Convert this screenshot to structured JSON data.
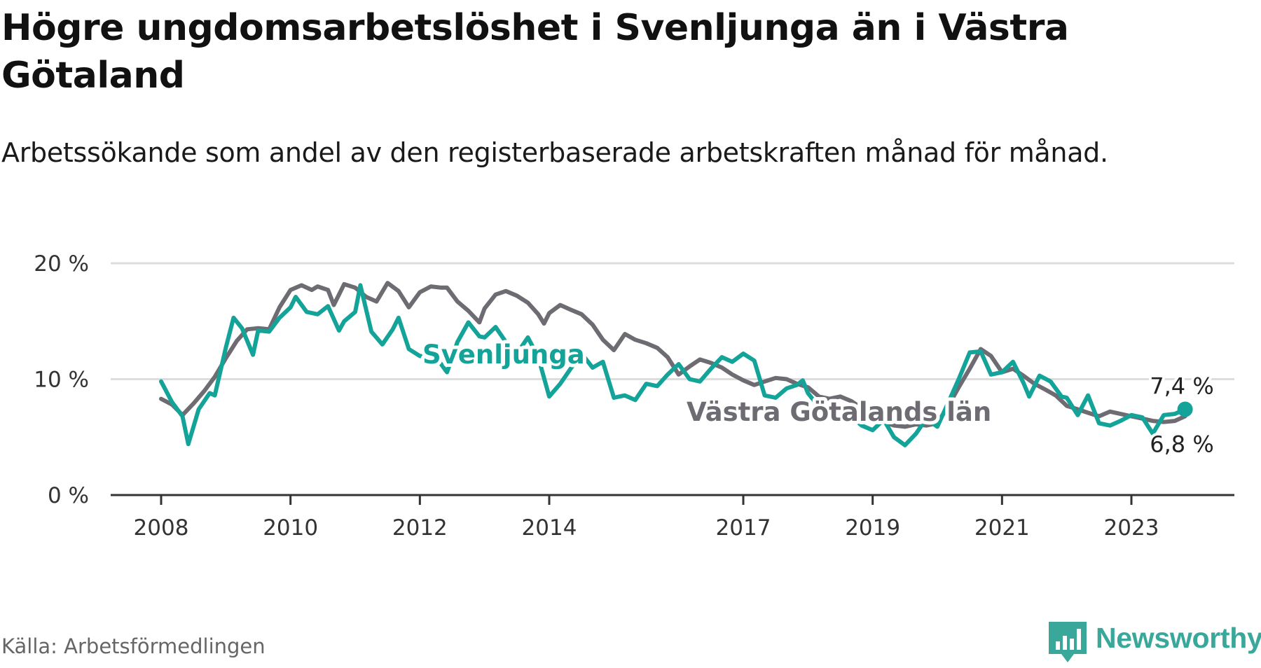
{
  "title": "Högre ungdomsarbetslöshet i Svenljunga än i Västra Götaland",
  "subtitle": "Arbetssökande som andel av den registerbaserade arbetskraften månad för månad.",
  "source": "Källa: Arbetsförmedlingen",
  "brand": "Newsworthy",
  "colors": {
    "svenljunga": "#14a398",
    "region": "#6e6c72",
    "grid": "#dddddd",
    "axis": "#333333",
    "brand": "#3aa79b"
  },
  "chart_data": {
    "type": "line",
    "title": "Högre ungdomsarbetslöshet i Svenljunga än i Västra Götaland",
    "xlabel": "",
    "ylabel": "",
    "xlim": [
      2007.8,
      2024.1
    ],
    "ylim": [
      0,
      20
    ],
    "x_ticks": [
      {
        "value": 2008.0,
        "label": "2008"
      },
      {
        "value": 2010.0,
        "label": "2010"
      },
      {
        "value": 2012.0,
        "label": "2012"
      },
      {
        "value": 2014.0,
        "label": "2014"
      },
      {
        "value": 2017.0,
        "label": "2017"
      },
      {
        "value": 2019.0,
        "label": "2019"
      },
      {
        "value": 2021.0,
        "label": "2021"
      },
      {
        "value": 2023.0,
        "label": "2023"
      }
    ],
    "y_ticks": [
      {
        "value": 0,
        "label": "0 %"
      },
      {
        "value": 10,
        "label": "10 %"
      },
      {
        "value": 20,
        "label": "20 %"
      }
    ],
    "series": [
      {
        "name": "Västra Götalands län",
        "label": "Västra Götalands län",
        "end_label": "6,8 %",
        "points": [
          [
            2008.0,
            8.3
          ],
          [
            2008.17,
            7.8
          ],
          [
            2008.33,
            6.9
          ],
          [
            2008.5,
            7.9
          ],
          [
            2008.67,
            9.0
          ],
          [
            2008.83,
            10.2
          ],
          [
            2009.0,
            11.8
          ],
          [
            2009.17,
            13.3
          ],
          [
            2009.33,
            14.3
          ],
          [
            2009.5,
            14.4
          ],
          [
            2009.67,
            14.3
          ],
          [
            2009.83,
            16.2
          ],
          [
            2010.0,
            17.7
          ],
          [
            2010.17,
            18.1
          ],
          [
            2010.33,
            17.7
          ],
          [
            2010.42,
            18.0
          ],
          [
            2010.58,
            17.7
          ],
          [
            2010.67,
            16.4
          ],
          [
            2010.83,
            18.2
          ],
          [
            2011.0,
            17.9
          ],
          [
            2011.17,
            17.1
          ],
          [
            2011.33,
            16.7
          ],
          [
            2011.5,
            18.3
          ],
          [
            2011.67,
            17.6
          ],
          [
            2011.83,
            16.2
          ],
          [
            2012.0,
            17.5
          ],
          [
            2012.17,
            18.0
          ],
          [
            2012.33,
            17.9
          ],
          [
            2012.42,
            17.9
          ],
          [
            2012.58,
            16.7
          ],
          [
            2012.75,
            15.9
          ],
          [
            2012.92,
            14.9
          ],
          [
            2013.0,
            16.1
          ],
          [
            2013.17,
            17.3
          ],
          [
            2013.33,
            17.6
          ],
          [
            2013.5,
            17.2
          ],
          [
            2013.67,
            16.6
          ],
          [
            2013.83,
            15.6
          ],
          [
            2013.92,
            14.8
          ],
          [
            2014.0,
            15.7
          ],
          [
            2014.17,
            16.4
          ],
          [
            2014.33,
            16.0
          ],
          [
            2014.5,
            15.6
          ],
          [
            2014.67,
            14.7
          ],
          [
            2014.83,
            13.4
          ],
          [
            2015.0,
            12.5
          ],
          [
            2015.17,
            13.9
          ],
          [
            2015.33,
            13.4
          ],
          [
            2015.5,
            13.1
          ],
          [
            2015.67,
            12.7
          ],
          [
            2015.83,
            11.9
          ],
          [
            2016.0,
            10.4
          ],
          [
            2016.17,
            11.1
          ],
          [
            2016.33,
            11.7
          ],
          [
            2016.5,
            11.4
          ],
          [
            2016.67,
            11.0
          ],
          [
            2016.83,
            10.4
          ],
          [
            2017.0,
            9.9
          ],
          [
            2017.17,
            9.5
          ],
          [
            2017.33,
            9.8
          ],
          [
            2017.5,
            10.1
          ],
          [
            2017.67,
            10.0
          ],
          [
            2017.83,
            9.6
          ],
          [
            2018.0,
            9.3
          ],
          [
            2018.17,
            8.5
          ],
          [
            2018.33,
            8.3
          ],
          [
            2018.5,
            8.5
          ],
          [
            2018.67,
            8.1
          ],
          [
            2018.83,
            7.5
          ],
          [
            2019.0,
            7.0
          ],
          [
            2019.17,
            6.3
          ],
          [
            2019.33,
            6.0
          ],
          [
            2019.5,
            5.9
          ],
          [
            2019.67,
            6.1
          ],
          [
            2019.83,
            6.0
          ],
          [
            2020.0,
            6.2
          ],
          [
            2020.17,
            7.7
          ],
          [
            2020.33,
            9.3
          ],
          [
            2020.5,
            10.9
          ],
          [
            2020.67,
            12.6
          ],
          [
            2020.83,
            12.0
          ],
          [
            2021.0,
            10.6
          ],
          [
            2021.17,
            10.9
          ],
          [
            2021.33,
            10.3
          ],
          [
            2021.5,
            9.6
          ],
          [
            2021.67,
            9.1
          ],
          [
            2021.83,
            8.6
          ],
          [
            2022.0,
            7.7
          ],
          [
            2022.17,
            7.4
          ],
          [
            2022.33,
            7.1
          ],
          [
            2022.5,
            6.8
          ],
          [
            2022.67,
            7.2
          ],
          [
            2022.83,
            7.0
          ],
          [
            2023.0,
            6.8
          ],
          [
            2023.17,
            6.6
          ],
          [
            2023.33,
            6.4
          ],
          [
            2023.5,
            6.3
          ],
          [
            2023.67,
            6.4
          ],
          [
            2023.83,
            6.8
          ]
        ]
      },
      {
        "name": "Svenljunga",
        "label": "Svenljunga",
        "end_label": "7,4 %",
        "points": [
          [
            2008.0,
            9.8
          ],
          [
            2008.17,
            8.0
          ],
          [
            2008.25,
            7.4
          ],
          [
            2008.33,
            6.8
          ],
          [
            2008.42,
            4.4
          ],
          [
            2008.58,
            7.4
          ],
          [
            2008.75,
            8.8
          ],
          [
            2008.83,
            8.6
          ],
          [
            2009.0,
            12.7
          ],
          [
            2009.12,
            15.3
          ],
          [
            2009.25,
            14.4
          ],
          [
            2009.42,
            12.1
          ],
          [
            2009.5,
            14.2
          ],
          [
            2009.67,
            14.1
          ],
          [
            2009.83,
            15.3
          ],
          [
            2010.0,
            16.2
          ],
          [
            2010.08,
            17.1
          ],
          [
            2010.25,
            15.8
          ],
          [
            2010.42,
            15.6
          ],
          [
            2010.58,
            16.3
          ],
          [
            2010.75,
            14.2
          ],
          [
            2010.83,
            15.0
          ],
          [
            2011.0,
            15.8
          ],
          [
            2011.08,
            18.1
          ],
          [
            2011.25,
            14.1
          ],
          [
            2011.42,
            13.0
          ],
          [
            2011.58,
            14.3
          ],
          [
            2011.67,
            15.3
          ],
          [
            2011.83,
            12.6
          ],
          [
            2012.0,
            12.0
          ],
          [
            2012.25,
            11.9
          ],
          [
            2012.42,
            10.6
          ],
          [
            2012.58,
            13.2
          ],
          [
            2012.75,
            14.9
          ],
          [
            2012.92,
            13.7
          ],
          [
            2013.0,
            13.6
          ],
          [
            2013.17,
            14.5
          ],
          [
            2013.33,
            13.2
          ],
          [
            2013.5,
            12.2
          ],
          [
            2013.67,
            13.6
          ],
          [
            2013.83,
            11.9
          ],
          [
            2014.0,
            8.5
          ],
          [
            2014.17,
            9.6
          ],
          [
            2014.33,
            10.9
          ],
          [
            2014.5,
            12.2
          ],
          [
            2014.67,
            11.0
          ],
          [
            2014.83,
            11.5
          ],
          [
            2015.0,
            8.4
          ],
          [
            2015.17,
            8.6
          ],
          [
            2015.33,
            8.2
          ],
          [
            2015.5,
            9.6
          ],
          [
            2015.67,
            9.4
          ],
          [
            2015.83,
            10.4
          ],
          [
            2016.0,
            11.3
          ],
          [
            2016.17,
            10.0
          ],
          [
            2016.33,
            9.8
          ],
          [
            2016.5,
            10.9
          ],
          [
            2016.67,
            11.9
          ],
          [
            2016.83,
            11.5
          ],
          [
            2017.0,
            12.2
          ],
          [
            2017.17,
            11.6
          ],
          [
            2017.33,
            8.6
          ],
          [
            2017.5,
            8.4
          ],
          [
            2017.67,
            9.2
          ],
          [
            2017.83,
            9.5
          ],
          [
            2017.92,
            9.9
          ],
          [
            2018.0,
            8.8
          ],
          [
            2018.17,
            7.6
          ],
          [
            2018.33,
            6.9
          ],
          [
            2018.5,
            7.2
          ],
          [
            2018.67,
            6.8
          ],
          [
            2018.83,
            6.0
          ],
          [
            2019.0,
            5.6
          ],
          [
            2019.17,
            6.5
          ],
          [
            2019.33,
            5.0
          ],
          [
            2019.5,
            4.3
          ],
          [
            2019.67,
            5.3
          ],
          [
            2019.83,
            6.6
          ],
          [
            2020.0,
            5.9
          ],
          [
            2020.17,
            8.0
          ],
          [
            2020.33,
            10.0
          ],
          [
            2020.5,
            12.3
          ],
          [
            2020.67,
            12.4
          ],
          [
            2020.83,
            10.4
          ],
          [
            2021.0,
            10.6
          ],
          [
            2021.17,
            11.5
          ],
          [
            2021.33,
            9.7
          ],
          [
            2021.42,
            8.5
          ],
          [
            2021.58,
            10.3
          ],
          [
            2021.75,
            9.8
          ],
          [
            2021.92,
            8.5
          ],
          [
            2022.0,
            8.4
          ],
          [
            2022.17,
            6.9
          ],
          [
            2022.33,
            8.6
          ],
          [
            2022.5,
            6.2
          ],
          [
            2022.67,
            6.0
          ],
          [
            2022.83,
            6.4
          ],
          [
            2023.0,
            6.9
          ],
          [
            2023.17,
            6.7
          ],
          [
            2023.33,
            5.3
          ],
          [
            2023.5,
            6.9
          ],
          [
            2023.67,
            7.0
          ],
          [
            2023.83,
            7.4
          ]
        ]
      }
    ]
  }
}
